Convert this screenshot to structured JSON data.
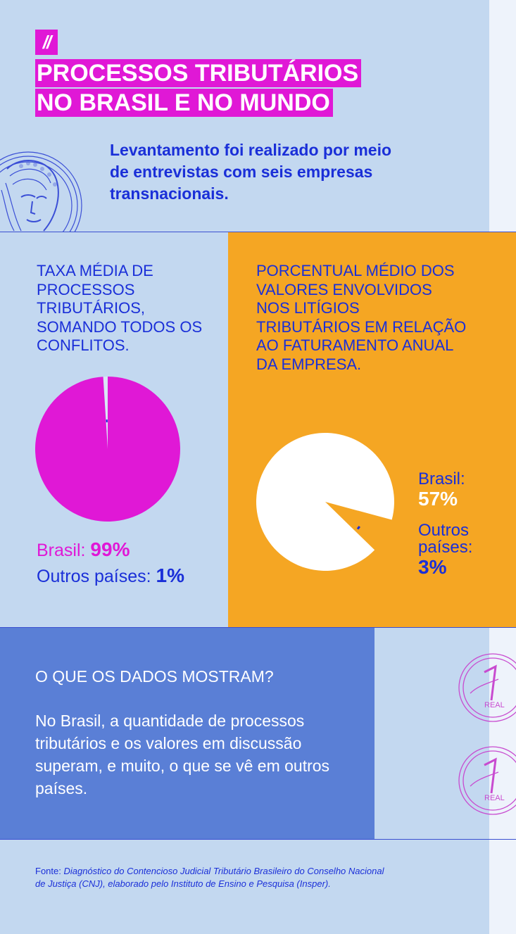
{
  "header": {
    "tag": "//",
    "title_line1": "PROCESSOS TRIBUTÁRIOS",
    "title_line2": "NO BRASIL E NO MUNDO"
  },
  "intro": "Levantamento foi realizado por meio de entrevistas com seis empresas transnacionais.",
  "colors": {
    "magenta": "#e018d6",
    "blue": "#1a2fd8",
    "orange": "#f5a623",
    "light_blue": "#c3d8f0",
    "mid_blue": "#5a7fd6",
    "white": "#ffffff"
  },
  "chart_data": [
    {
      "type": "pie",
      "title": "TAXA MÉDIA DE PROCESSOS TRIBUTÁRIOS, SOMANDO TODOS OS CONFLITOS.",
      "slices": [
        {
          "label": "Brasil:",
          "value": 99,
          "display": "99%",
          "color": "#e018d6"
        },
        {
          "label": "Outros países:",
          "value": 1,
          "display": "1%",
          "color": "#1a2fd8"
        }
      ]
    },
    {
      "type": "pie",
      "title": "PORCENTUAL MÉDIO DOS VALORES ENVOLVIDOS NOS LITÍGIOS TRIBUTÁRIOS EM RELAÇÃO AO FATURAMENTO ANUAL DA EMPRESA.",
      "slices": [
        {
          "label": "Brasil:",
          "value": 57,
          "display": "57%",
          "color": "#ffffff"
        },
        {
          "label": "Outros países:",
          "value": 3,
          "display": "3%",
          "color": "#1a2fd8"
        }
      ]
    }
  ],
  "info": {
    "title": "O QUE OS DADOS MOSTRAM?",
    "body": "No Brasil, a quantidade de processos tributários e os valores em discussão superam, e muito, o que se vê em outros países."
  },
  "source": {
    "prefix": "Fonte: ",
    "text": "Diagnóstico do Contencioso Judicial Tributário Brasileiro do Conselho Nacional de Justiça (CNJ), elaborado pelo Instituto de Ensino e Pesquisa (Insper)."
  },
  "coin_text": "REAL"
}
